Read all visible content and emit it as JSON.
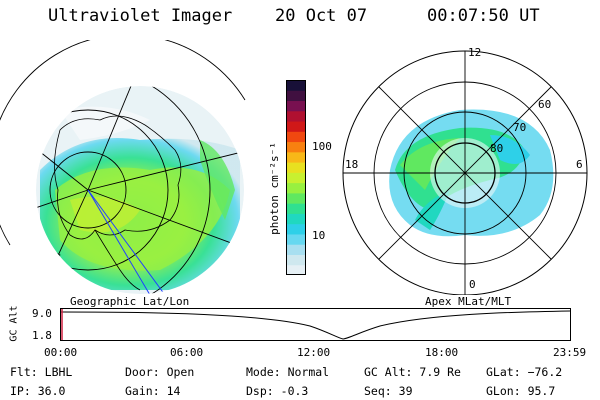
{
  "header": {
    "instrument": "Ultraviolet Imager",
    "date": "20 Oct 07",
    "time": "00:07:50 UT"
  },
  "left_panel": {
    "label": "Geographic Lat/Lon"
  },
  "right_panel": {
    "label": "Apex MLat/MLT",
    "mlt_labels": [
      "12",
      "18",
      "6",
      "0"
    ],
    "lat_labels": [
      "60",
      "70",
      "80"
    ]
  },
  "colorbar": {
    "unit": "photon cm⁻²s⁻¹",
    "ticks": [
      "100",
      "10"
    ],
    "scale": "log",
    "colors": [
      "#e6f0f5",
      "#cfe8ef",
      "#a8dff0",
      "#66d8f0",
      "#2ed0e8",
      "#20d8c0",
      "#30e090",
      "#60e860",
      "#98f040",
      "#c8f030",
      "#e8e020",
      "#f8b818",
      "#f88010",
      "#f04810",
      "#d01818",
      "#b01030",
      "#781050",
      "#401040",
      "#181038"
    ]
  },
  "altitude_plot": {
    "ylabel": "GC Alt",
    "y_ticks": [
      "9.0",
      "1.8"
    ],
    "x_ticks": [
      "00:00",
      "06:00",
      "12:00",
      "18:00",
      "23:59"
    ],
    "ylim": [
      1.8,
      9.0
    ]
  },
  "info": {
    "filter_label": "Flt:",
    "filter": "LBHL",
    "ip_label": "IP:",
    "ip": "36.0",
    "door_label": "Door:",
    "door": "Open",
    "gain_label": "Gain:",
    "gain": "14",
    "mode_label": "Mode:",
    "mode": "Normal",
    "dsp_label": "Dsp:",
    "dsp": "-0.3",
    "gcalt_label": "GC Alt:",
    "gcalt": "7.9 Re",
    "seq_label": "Seq:",
    "seq": "39",
    "glat_label": "GLat:",
    "glat": "−76.2",
    "glon_label": "GLon:",
    "glon": "95.7"
  }
}
